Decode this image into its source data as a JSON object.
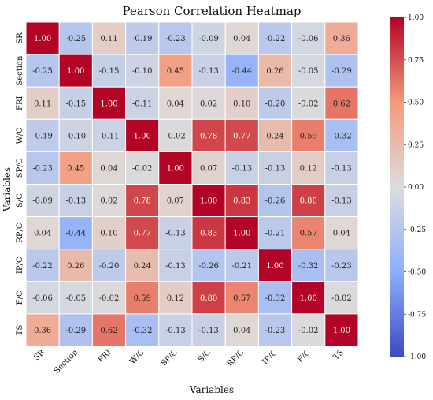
{
  "chart_data": {
    "type": "heatmap",
    "title": "Pearson Correlation Heatmap",
    "xlabel": "Variables",
    "ylabel": "Variables",
    "rows": [
      "SR",
      "Section",
      "FRI",
      "W/C",
      "SP/C",
      "S/C",
      "RP/C",
      "IP/C",
      "F/C",
      "TS"
    ],
    "columns": [
      "SR",
      "Section",
      "FRI",
      "W/C",
      "SP/C",
      "S/C",
      "RP/C",
      "IP/C",
      "F/C",
      "TS"
    ],
    "values": [
      [
        1.0,
        -0.25,
        0.11,
        -0.19,
        -0.23,
        -0.09,
        0.04,
        -0.22,
        -0.06,
        0.36
      ],
      [
        -0.25,
        1.0,
        -0.15,
        -0.1,
        0.45,
        -0.13,
        -0.44,
        0.26,
        -0.05,
        -0.29
      ],
      [
        0.11,
        -0.15,
        1.0,
        -0.11,
        0.04,
        0.02,
        0.1,
        -0.2,
        -0.02,
        0.62
      ],
      [
        -0.19,
        -0.1,
        -0.11,
        1.0,
        -0.02,
        0.78,
        0.77,
        0.24,
        0.59,
        -0.32
      ],
      [
        -0.23,
        0.45,
        0.04,
        -0.02,
        1.0,
        0.07,
        -0.13,
        -0.13,
        0.12,
        -0.13
      ],
      [
        -0.09,
        -0.13,
        0.02,
        0.78,
        0.07,
        1.0,
        0.83,
        -0.26,
        0.8,
        -0.13
      ],
      [
        0.04,
        -0.44,
        0.1,
        0.77,
        -0.13,
        0.83,
        1.0,
        -0.21,
        0.57,
        0.04
      ],
      [
        -0.22,
        0.26,
        -0.2,
        0.24,
        -0.13,
        -0.26,
        -0.21,
        1.0,
        -0.32,
        -0.23
      ],
      [
        -0.06,
        -0.05,
        -0.02,
        0.59,
        0.12,
        0.8,
        0.57,
        -0.32,
        1.0,
        -0.02
      ],
      [
        0.36,
        -0.29,
        0.62,
        -0.32,
        -0.13,
        -0.13,
        0.04,
        -0.23,
        -0.02,
        1.0
      ]
    ],
    "vmin": -1.0,
    "vmax": 1.0,
    "colormap": "coolwarm",
    "colorbar_ticks": [
      1.0,
      0.75,
      0.5,
      0.25,
      0.0,
      -0.25,
      -0.5,
      -0.75,
      -1.0
    ],
    "annotate": true,
    "grid": true,
    "legend_position": "right"
  }
}
